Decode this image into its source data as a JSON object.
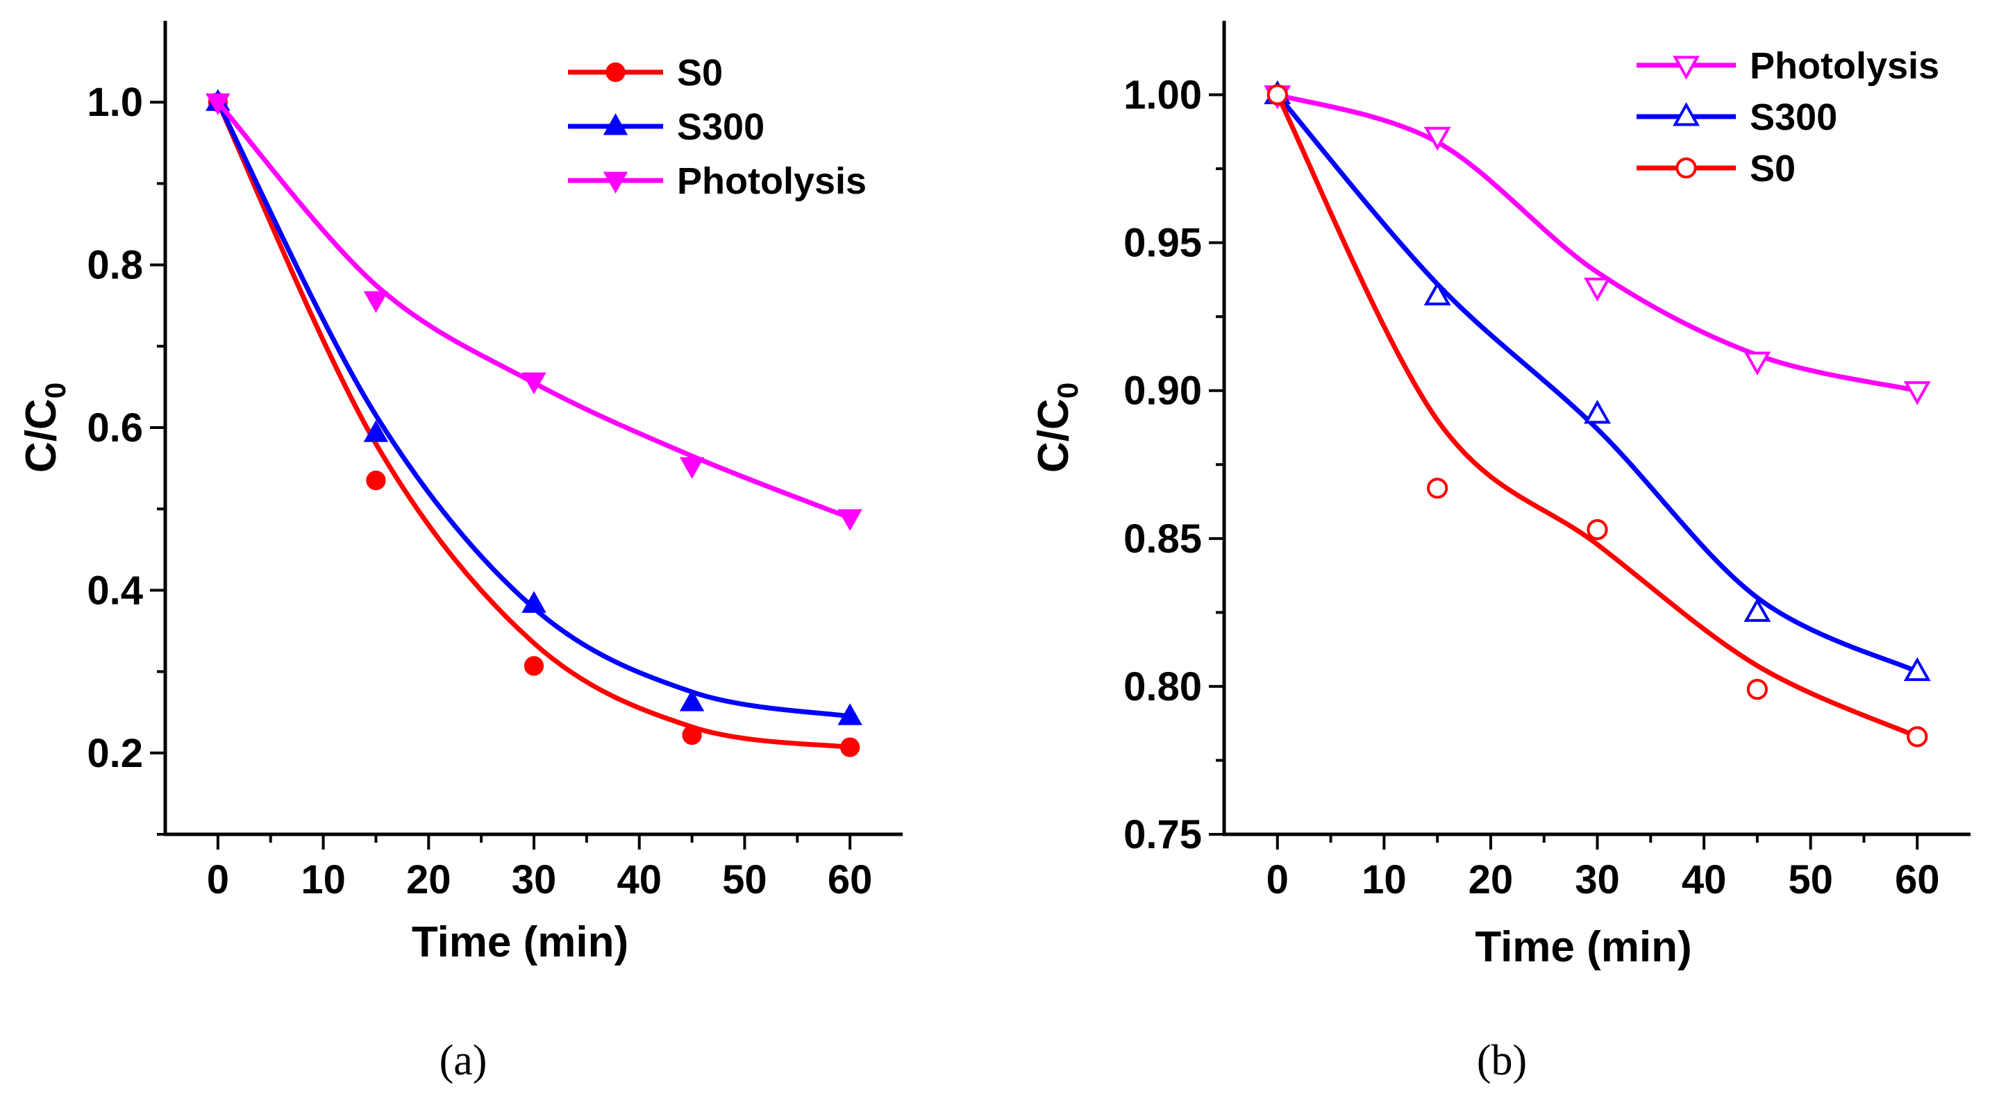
{
  "chart_data": [
    {
      "type": "line",
      "panel_label": "(a)",
      "xlabel": "Time (min)",
      "ylabel": {
        "main": "C/C",
        "sub": "0"
      },
      "xlim": [
        -5,
        65
      ],
      "ylim": [
        0.1,
        1.1
      ],
      "x_ticks": [
        0,
        10,
        20,
        30,
        40,
        50,
        60
      ],
      "x_tick_labels": [
        "0",
        "10",
        "20",
        "30",
        "40",
        "50",
        "60"
      ],
      "y_ticks": [
        0.2,
        0.4,
        0.6,
        0.8,
        1.0
      ],
      "y_tick_labels": [
        "0.2",
        "0.4",
        "0.6",
        "0.8",
        "1.0"
      ],
      "x_minor_ticks": [
        5,
        15,
        25,
        35,
        45,
        55
      ],
      "y_minor_ticks": [
        0.1,
        0.3,
        0.5,
        0.7,
        0.9
      ],
      "grid": false,
      "legend_position": "top-right",
      "series": [
        {
          "name": "S0",
          "color": "#ff0000",
          "marker": "circle",
          "filled": true,
          "x": [
            0,
            15,
            30,
            45,
            60
          ],
          "values": [
            1.0,
            0.535,
            0.307,
            0.222,
            0.207
          ],
          "fit": [
            1.0,
            0.58,
            0.335,
            0.232,
            0.207
          ]
        },
        {
          "name": "S300",
          "color": "#0000ff",
          "marker": "triangle-up",
          "filled": true,
          "x": [
            0,
            15,
            30,
            45,
            60
          ],
          "values": [
            1.0,
            0.593,
            0.383,
            0.262,
            0.245
          ],
          "fit": [
            1.0,
            0.615,
            0.378,
            0.275,
            0.245
          ]
        },
        {
          "name": "Photolysis",
          "color": "#ff00ff",
          "marker": "triangle-down",
          "filled": true,
          "x": [
            0,
            15,
            30,
            45,
            60
          ],
          "values": [
            1.0,
            0.757,
            0.657,
            0.553,
            0.489
          ],
          "fit": [
            1.0,
            0.775,
            0.655,
            0.565,
            0.489
          ]
        }
      ],
      "legend_order": [
        "S0",
        "S300",
        "Photolysis"
      ]
    },
    {
      "type": "line",
      "panel_label": "(b)",
      "xlabel": "Time (min)",
      "ylabel": {
        "main": "C/C",
        "sub": "0"
      },
      "xlim": [
        -5,
        65
      ],
      "ylim": [
        0.75,
        1.025
      ],
      "x_ticks": [
        0,
        10,
        20,
        30,
        40,
        50,
        60
      ],
      "x_tick_labels": [
        "0",
        "10",
        "20",
        "30",
        "40",
        "50",
        "60"
      ],
      "y_ticks": [
        0.75,
        0.8,
        0.85,
        0.9,
        0.95,
        1.0
      ],
      "y_tick_labels": [
        "0.75",
        "0.80",
        "0.85",
        "0.90",
        "0.95",
        "1.00"
      ],
      "x_minor_ticks": [
        5,
        15,
        25,
        35,
        45,
        55
      ],
      "y_minor_ticks": [
        0.775,
        0.825,
        0.875,
        0.925,
        0.975
      ],
      "grid": false,
      "legend_position": "top-right",
      "series": [
        {
          "name": "Photolysis",
          "color": "#ff00ff",
          "marker": "triangle-down",
          "filled": false,
          "x": [
            0,
            15,
            30,
            45,
            60
          ],
          "values": [
            1.0,
            0.986,
            0.935,
            0.91,
            0.9
          ],
          "fit": [
            1.0,
            0.984,
            0.94,
            0.912,
            0.9
          ]
        },
        {
          "name": "S300",
          "color": "#0000ff",
          "marker": "triangle-up",
          "filled": false,
          "x": [
            0,
            15,
            30,
            45,
            60
          ],
          "values": [
            1.0,
            0.932,
            0.892,
            0.825,
            0.805
          ],
          "fit": [
            1.0,
            0.936,
            0.887,
            0.83,
            0.805
          ]
        },
        {
          "name": "S0",
          "color": "#ff0000",
          "marker": "circle",
          "filled": false,
          "x": [
            0,
            15,
            30,
            45,
            60
          ],
          "values": [
            1.0,
            0.867,
            0.853,
            0.799,
            0.783
          ],
          "fit": [
            1.0,
            0.89,
            0.848,
            0.807,
            0.783
          ]
        }
      ],
      "legend_order": [
        "Photolysis",
        "S300",
        "S0"
      ]
    }
  ]
}
